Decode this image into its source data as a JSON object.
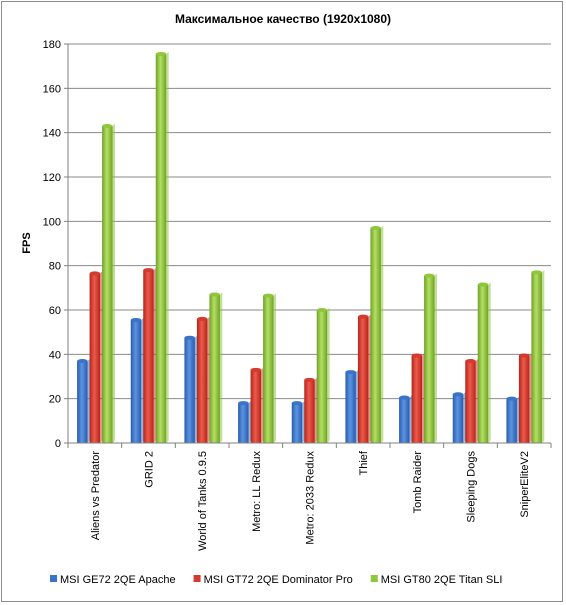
{
  "chart_data": {
    "type": "bar",
    "title": "Максимальное  качество  (1920x1080)",
    "xlabel": "",
    "ylabel": "FPS",
    "ylim": [
      0,
      180
    ],
    "yticks": [
      0,
      20,
      40,
      60,
      80,
      100,
      120,
      140,
      160,
      180
    ],
    "grid": true,
    "legend_position": "bottom",
    "categories": [
      "Aliens vs Predator",
      "GRID 2",
      "World of Tanks 0.9.5",
      "Metro: LL Redux",
      "Metro: 2033 Redux",
      "Thief",
      "Tomb Raider",
      "Sleeping Dogs",
      "SniperEliteV2"
    ],
    "series": [
      {
        "name": "MSI GE72 2QE Apache",
        "color": "#3a74c9",
        "values": [
          37,
          55.5,
          47.5,
          18,
          18,
          32,
          20.5,
          22,
          20
        ]
      },
      {
        "name": "MSI GT72 2QE Dominator Pro",
        "color": "#d43a2d",
        "values": [
          76.5,
          78,
          56,
          33,
          28.5,
          57,
          39.5,
          37,
          39.5
        ]
      },
      {
        "name": "MSI GT80 2QE Titan SLI",
        "color": "#8fc63c",
        "values": [
          143,
          175.5,
          67,
          66.5,
          60,
          97,
          75.5,
          71.5,
          77
        ]
      }
    ]
  }
}
